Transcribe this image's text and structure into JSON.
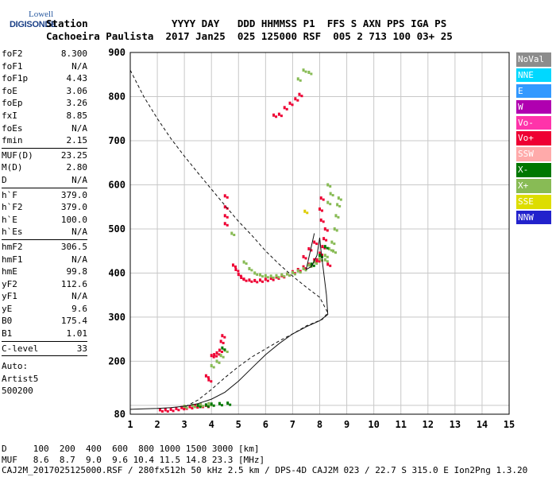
{
  "logo": {
    "line1": "Lowell",
    "line2": "DIGISONDE"
  },
  "header": {
    "row1": "Station              YYYY DAY   DDD HHMMSS P1  FFS S AXN PPS IGA PS",
    "row2": "Cachoeira Paulista  2017 Jan25  025 125000 RSF  005 2 713 100 03+ 25"
  },
  "params": [
    [
      [
        "foF2",
        "8.300"
      ],
      [
        "foF1",
        "N/A"
      ],
      [
        "foF1p",
        "4.43"
      ],
      [
        "foE",
        "3.06"
      ],
      [
        "foEp",
        "3.26"
      ],
      [
        "fxI",
        "8.85"
      ],
      [
        "foEs",
        "N/A"
      ],
      [
        "fmin",
        "2.15"
      ]
    ],
    [
      [
        "MUF(D)",
        "23.25"
      ],
      [
        "M(D)",
        "2.80"
      ],
      [
        "D",
        "N/A"
      ]
    ],
    [
      [
        "h`F",
        "379.0"
      ],
      [
        "h`F2",
        "379.0"
      ],
      [
        "h`E",
        "100.0"
      ],
      [
        "h`Es",
        "N/A"
      ]
    ],
    [
      [
        "hmF2",
        "306.5"
      ],
      [
        "hmF1",
        "N/A"
      ],
      [
        "hmE",
        "99.8"
      ],
      [
        "yF2",
        "112.6"
      ],
      [
        "yF1",
        "N/A"
      ],
      [
        "yE",
        "9.6"
      ],
      [
        "B0",
        "175.4"
      ],
      [
        "B1",
        "1.01"
      ]
    ],
    [
      [
        "C-level",
        "33"
      ]
    ]
  ],
  "auto": [
    "Auto:",
    "Artist5",
    "500200"
  ],
  "legend": [
    {
      "label": "NoVal",
      "color": "#8c8c8c"
    },
    {
      "label": "NNE",
      "color": "#00d8ff"
    },
    {
      "label": "E",
      "color": "#3399ff"
    },
    {
      "label": "W",
      "color": "#b000b0"
    },
    {
      "label": "Vo-",
      "color": "#ff33aa"
    },
    {
      "label": "Vo+",
      "color": "#ee0033"
    },
    {
      "label": "SSW",
      "color": "#ffaaaa"
    },
    {
      "label": "X-",
      "color": "#007700"
    },
    {
      "label": "X+",
      "color": "#88bb55"
    },
    {
      "label": "SSE",
      "color": "#dddd00"
    },
    {
      "label": "NNW",
      "color": "#2222cc"
    }
  ],
  "footer": {
    "row1": "D     100  200  400  600  800 1000 1500 3000 [km]",
    "row2": "MUF   8.6  8.7  9.0  9.6 10.4 11.5 14.8 23.3 [MHz]",
    "row3": "CAJ2M_2017025125000.RSF / 280fx512h 50 kHz 2.5 km / DPS-4D CAJ2M 023 / 22.7 S 315.0 E Ion2Png 1.3.20"
  },
  "chart_data": {
    "type": "scatter",
    "xlim": [
      1,
      15
    ],
    "ylim": [
      80,
      900
    ],
    "xticks": [
      1,
      2,
      3,
      4,
      5,
      6,
      7,
      8,
      9,
      10,
      11,
      12,
      13,
      14,
      15
    ],
    "yticks": [
      100,
      200,
      300,
      400,
      500,
      600,
      700,
      800,
      900
    ],
    "ytick_labels": [
      "",
      "200",
      "300",
      "400",
      "500",
      "600",
      "700",
      "800",
      "900"
    ],
    "extra_ytick_label": "80",
    "grid": true,
    "series": [
      {
        "color": "#ee0033",
        "style": "dots",
        "points": [
          [
            2.1,
            90
          ],
          [
            2.3,
            90
          ],
          [
            2.5,
            91
          ],
          [
            2.7,
            93
          ],
          [
            2.9,
            95
          ],
          [
            3.0,
            96
          ],
          [
            3.2,
            97
          ],
          [
            3.4,
            99
          ],
          [
            3.6,
            100
          ],
          [
            3.8,
            100
          ],
          [
            3.8,
            167
          ],
          [
            3.9,
            158
          ],
          [
            4.0,
            213
          ],
          [
            4.1,
            215
          ],
          [
            4.2,
            219
          ],
          [
            4.3,
            225
          ],
          [
            4.35,
            245
          ],
          [
            4.4,
            258
          ],
          [
            4.5,
            512
          ],
          [
            4.5,
            530
          ],
          [
            4.5,
            550
          ],
          [
            4.5,
            575
          ],
          [
            4.8,
            418
          ],
          [
            4.9,
            408
          ],
          [
            5.0,
            397
          ],
          [
            5.1,
            390
          ],
          [
            5.2,
            386
          ],
          [
            5.4,
            384
          ],
          [
            5.6,
            383
          ],
          [
            5.8,
            384
          ],
          [
            6.0,
            386
          ],
          [
            6.2,
            388
          ],
          [
            6.4,
            391
          ],
          [
            6.6,
            394
          ],
          [
            6.8,
            398
          ],
          [
            7.0,
            403
          ],
          [
            7.2,
            408
          ],
          [
            7.4,
            414
          ],
          [
            7.6,
            420
          ],
          [
            7.8,
            430
          ],
          [
            8.0,
            445
          ],
          [
            8.1,
            460
          ],
          [
            8.15,
            478
          ],
          [
            8.2,
            500
          ],
          [
            8.05,
            520
          ],
          [
            8.0,
            545
          ],
          [
            8.05,
            570
          ],
          [
            6.3,
            758
          ],
          [
            6.5,
            760
          ],
          [
            6.7,
            775
          ],
          [
            6.9,
            785
          ],
          [
            7.1,
            795
          ],
          [
            7.25,
            805
          ],
          [
            7.4,
            437
          ],
          [
            7.6,
            455
          ],
          [
            7.8,
            470
          ],
          [
            7.9,
            430
          ],
          [
            8.3,
            420
          ]
        ]
      },
      {
        "color": "#88bb55",
        "style": "dots",
        "points": [
          [
            3.0,
            98
          ],
          [
            3.3,
            100
          ],
          [
            3.6,
            102
          ],
          [
            3.9,
            104
          ],
          [
            4.0,
            190
          ],
          [
            4.2,
            200
          ],
          [
            4.35,
            213
          ],
          [
            4.5,
            225
          ],
          [
            5.2,
            425
          ],
          [
            5.4,
            410
          ],
          [
            5.6,
            400
          ],
          [
            5.8,
            396
          ],
          [
            6.0,
            394
          ],
          [
            6.2,
            393
          ],
          [
            6.4,
            394
          ],
          [
            6.6,
            396
          ],
          [
            6.8,
            398
          ],
          [
            7.0,
            401
          ],
          [
            7.2,
            405
          ],
          [
            7.4,
            410
          ],
          [
            7.6,
            418
          ],
          [
            7.8,
            425
          ],
          [
            8.0,
            432
          ],
          [
            8.2,
            440
          ],
          [
            8.35,
            455
          ],
          [
            8.45,
            470
          ],
          [
            8.55,
            500
          ],
          [
            8.6,
            530
          ],
          [
            8.65,
            555
          ],
          [
            8.7,
            570
          ],
          [
            8.4,
            580
          ],
          [
            8.3,
            560
          ],
          [
            8.3,
            600
          ],
          [
            4.75,
            490
          ],
          [
            7.4,
            860
          ],
          [
            7.6,
            855
          ],
          [
            7.2,
            840
          ],
          [
            8.2,
            430
          ],
          [
            8.5,
            450
          ]
        ]
      },
      {
        "color": "#007700",
        "style": "dots",
        "points": [
          [
            3.5,
            100
          ],
          [
            3.8,
            101
          ],
          [
            4.0,
            103
          ],
          [
            4.3,
            104
          ],
          [
            4.6,
            105
          ],
          [
            4.4,
            230
          ],
          [
            7.7,
            420
          ],
          [
            8.0,
            440
          ],
          [
            8.2,
            460
          ]
        ]
      },
      {
        "color": "#ddcc00",
        "style": "dots",
        "points": [
          [
            7.45,
            540
          ]
        ]
      },
      {
        "color": "#111111",
        "style": "solid",
        "points": [
          [
            1.0,
            91
          ],
          [
            1.5,
            92
          ],
          [
            2.0,
            93
          ],
          [
            2.5,
            95
          ],
          [
            3.0,
            98
          ],
          [
            3.5,
            104
          ],
          [
            4.0,
            114
          ],
          [
            4.5,
            130
          ],
          [
            5.0,
            155
          ],
          [
            5.5,
            185
          ],
          [
            6.0,
            215
          ],
          [
            6.5,
            240
          ],
          [
            7.0,
            262
          ],
          [
            7.5,
            278
          ],
          [
            8.0,
            292
          ],
          [
            8.3,
            306
          ],
          [
            8.25,
            350
          ],
          [
            8.15,
            400
          ],
          [
            8.05,
            450
          ],
          [
            8.0,
            480
          ],
          [
            7.9,
            440
          ],
          [
            7.7,
            415
          ],
          [
            7.5,
            408
          ],
          [
            7.8,
            490
          ]
        ]
      },
      {
        "color": "#111111",
        "style": "dashed",
        "points": [
          [
            1.0,
            860
          ],
          [
            1.5,
            800
          ],
          [
            2.0,
            750
          ],
          [
            2.5,
            705
          ],
          [
            3.0,
            665
          ],
          [
            3.5,
            627
          ],
          [
            4.0,
            590
          ],
          [
            4.5,
            553
          ],
          [
            5.0,
            517
          ],
          [
            5.5,
            485
          ],
          [
            6.0,
            450
          ],
          [
            6.5,
            420
          ],
          [
            7.0,
            393
          ],
          [
            7.5,
            368
          ],
          [
            8.0,
            345
          ],
          [
            8.3,
            310
          ],
          [
            8.1,
            295
          ],
          [
            7.5,
            280
          ],
          [
            7.0,
            262
          ],
          [
            6.5,
            246
          ],
          [
            6.0,
            228
          ],
          [
            5.5,
            210
          ],
          [
            5.0,
            188
          ],
          [
            4.5,
            163
          ],
          [
            4.0,
            136
          ],
          [
            3.5,
            112
          ],
          [
            3.0,
            96
          ]
        ]
      }
    ]
  }
}
